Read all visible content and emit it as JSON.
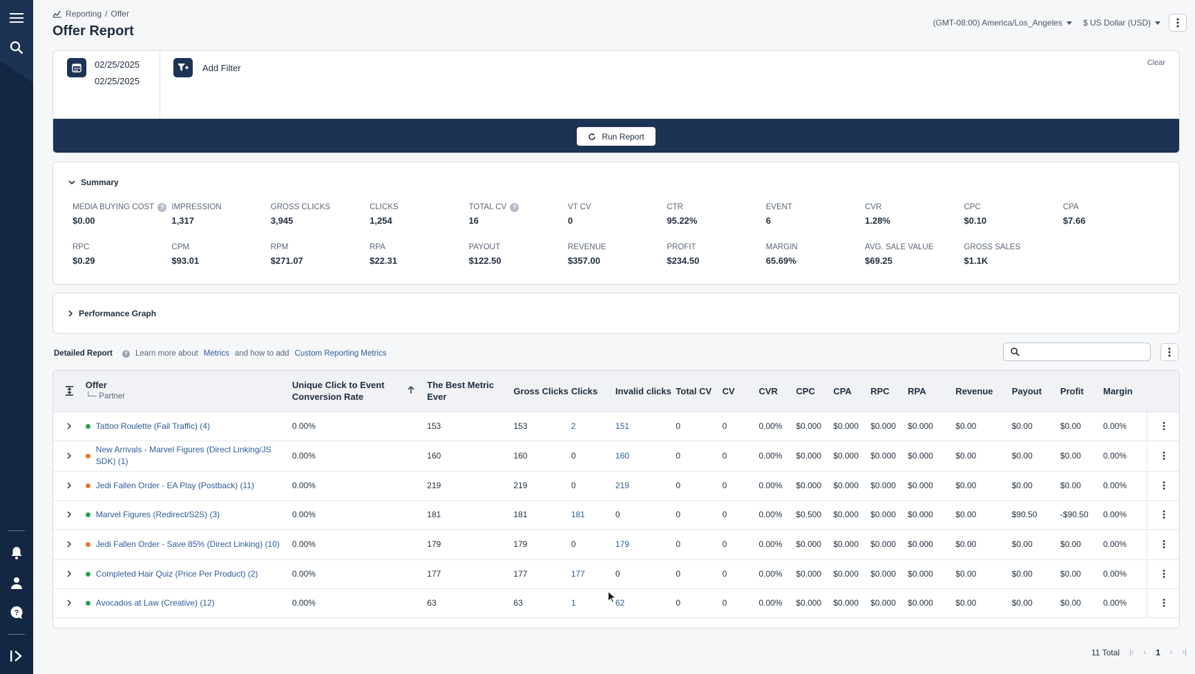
{
  "sidebar": {
    "icons": [
      "menu-icon",
      "search-icon",
      "bell-icon",
      "user-icon",
      "help-icon",
      "expand-icon"
    ]
  },
  "breadcrumb": {
    "section": "Reporting",
    "separator": "/",
    "page": "Offer"
  },
  "page_title": "Offer Report",
  "header": {
    "timezone": "(GMT-08:00) America/Los_Angeles",
    "currency": "$ US Dollar (USD)"
  },
  "filter": {
    "date_start": "02/25/2025",
    "date_end": "02/25/2025",
    "add_filter_label": "Add Filter",
    "clear_label": "Clear",
    "run_report_label": "Run Report"
  },
  "summary": {
    "title": "Summary",
    "metrics": [
      {
        "label": "MEDIA BUYING COST",
        "value": "$0.00",
        "help": true
      },
      {
        "label": "IMPRESSION",
        "value": "1,317"
      },
      {
        "label": "GROSS CLICKS",
        "value": "3,945"
      },
      {
        "label": "CLICKS",
        "value": "1,254"
      },
      {
        "label": "TOTAL CV",
        "value": "16",
        "help": true
      },
      {
        "label": "VT CV",
        "value": "0"
      },
      {
        "label": "CTR",
        "value": "95.22%"
      },
      {
        "label": "EVENT",
        "value": "6"
      },
      {
        "label": "CVR",
        "value": "1.28%"
      },
      {
        "label": "CPC",
        "value": "$0.10"
      },
      {
        "label": "CPA",
        "value": "$7.66"
      },
      {
        "label": "RPC",
        "value": "$0.29"
      },
      {
        "label": "CPM",
        "value": "$93.01"
      },
      {
        "label": "RPM",
        "value": "$271.07"
      },
      {
        "label": "RPA",
        "value": "$22.31"
      },
      {
        "label": "PAYOUT",
        "value": "$122.50"
      },
      {
        "label": "REVENUE",
        "value": "$357.00"
      },
      {
        "label": "PROFIT",
        "value": "$234.50"
      },
      {
        "label": "MARGIN",
        "value": "65.69%"
      },
      {
        "label": "AVG. SALE VALUE",
        "value": "$69.25"
      },
      {
        "label": "GROSS SALES",
        "value": "$1.1K"
      }
    ]
  },
  "performance_graph": {
    "title": "Performance Graph"
  },
  "detailed": {
    "title": "Detailed Report",
    "help_prefix": "Learn more about",
    "metrics_link": "Metrics",
    "help_middle": "and how to add",
    "custom_link": "Custom Reporting Metrics",
    "search_placeholder": ""
  },
  "table": {
    "headers": {
      "offer": "Offer",
      "partner": "Partner",
      "unique": "Unique Click to Event Conversion Rate",
      "best": "The Best Metric Ever",
      "gross_clicks": "Gross Clicks",
      "clicks": "Clicks",
      "invalid": "Invalid clicks",
      "total_cv": "Total CV",
      "cv": "CV",
      "cvr": "CVR",
      "cpc": "CPC",
      "cpa": "CPA",
      "rpc": "RPC",
      "rpa": "RPA",
      "revenue": "Revenue",
      "payout": "Payout",
      "profit": "Profit",
      "margin": "Margin"
    },
    "rows": [
      {
        "status": "#27a35a",
        "offer": "Tattoo Roulette (Fail Traffic) (4)",
        "unique": "0.00%",
        "best": "153",
        "gross": "153",
        "clicks": "2",
        "clicks_link": true,
        "invalid": "151",
        "invalid_link": true,
        "total_cv": "0",
        "cv": "0",
        "cvr": "0.00%",
        "cpc": "$0.000",
        "cpa": "$0.000",
        "rpc": "$0.000",
        "rpa": "$0.000",
        "revenue": "$0.00",
        "payout": "$0.00",
        "profit": "$0.00",
        "margin": "0.00%"
      },
      {
        "status": "#e8742c",
        "offer": "New Arrivals - Marvel Figures (Direct Linking/JS SDK) (1)",
        "unique": "0.00%",
        "best": "160",
        "gross": "160",
        "clicks": "0",
        "clicks_link": false,
        "invalid": "160",
        "invalid_link": true,
        "total_cv": "0",
        "cv": "0",
        "cvr": "0.00%",
        "cpc": "$0.000",
        "cpa": "$0.000",
        "rpc": "$0.000",
        "rpa": "$0.000",
        "revenue": "$0.00",
        "payout": "$0.00",
        "profit": "$0.00",
        "margin": "0.00%"
      },
      {
        "status": "#e8742c",
        "offer": "Jedi Fallen Order - EA Play (Postback) (11)",
        "unique": "0.00%",
        "best": "219",
        "gross": "219",
        "clicks": "0",
        "clicks_link": false,
        "invalid": "219",
        "invalid_link": true,
        "total_cv": "0",
        "cv": "0",
        "cvr": "0.00%",
        "cpc": "$0.000",
        "cpa": "$0.000",
        "rpc": "$0.000",
        "rpa": "$0.000",
        "revenue": "$0.00",
        "payout": "$0.00",
        "profit": "$0.00",
        "margin": "0.00%"
      },
      {
        "status": "#27a35a",
        "offer": "Marvel Figures (Redirect/S2S) (3)",
        "unique": "0.00%",
        "best": "181",
        "gross": "181",
        "clicks": "181",
        "clicks_link": true,
        "invalid": "0",
        "invalid_link": false,
        "total_cv": "0",
        "cv": "0",
        "cvr": "0.00%",
        "cpc": "$0.500",
        "cpa": "$0.000",
        "rpc": "$0.000",
        "rpa": "$0.000",
        "revenue": "$0.00",
        "payout": "$90.50",
        "profit": "-$90.50",
        "margin": "0.00%"
      },
      {
        "status": "#e8742c",
        "offer": "Jedi Fallen Order - Save 85% (Direct Linking) (10)",
        "unique": "0.00%",
        "best": "179",
        "gross": "179",
        "clicks": "0",
        "clicks_link": false,
        "invalid": "179",
        "invalid_link": true,
        "total_cv": "0",
        "cv": "0",
        "cvr": "0.00%",
        "cpc": "$0.000",
        "cpa": "$0.000",
        "rpc": "$0.000",
        "rpa": "$0.000",
        "revenue": "$0.00",
        "payout": "$0.00",
        "profit": "$0.00",
        "margin": "0.00%"
      },
      {
        "status": "#27a35a",
        "offer": "Completed Hair Quiz (Price Per Product) (2)",
        "unique": "0.00%",
        "best": "177",
        "gross": "177",
        "clicks": "177",
        "clicks_link": true,
        "invalid": "0",
        "invalid_link": false,
        "total_cv": "0",
        "cv": "0",
        "cvr": "0.00%",
        "cpc": "$0.000",
        "cpa": "$0.000",
        "rpc": "$0.000",
        "rpa": "$0.000",
        "revenue": "$0.00",
        "payout": "$0.00",
        "profit": "$0.00",
        "margin": "0.00%"
      },
      {
        "status": "#27a35a",
        "offer": "Avocados at Law (Creative) (12)",
        "unique": "0.00%",
        "best": "63",
        "gross": "63",
        "clicks": "1",
        "clicks_link": true,
        "invalid": "62",
        "invalid_link": true,
        "total_cv": "0",
        "cv": "0",
        "cvr": "0.00%",
        "cpc": "$0.000",
        "cpa": "$0.000",
        "rpc": "$0.000",
        "rpa": "$0.000",
        "revenue": "$0.00",
        "payout": "$0.00",
        "profit": "$0.00",
        "margin": "0.00%"
      }
    ]
  },
  "pagination": {
    "total": "11 Total",
    "page": "1"
  }
}
